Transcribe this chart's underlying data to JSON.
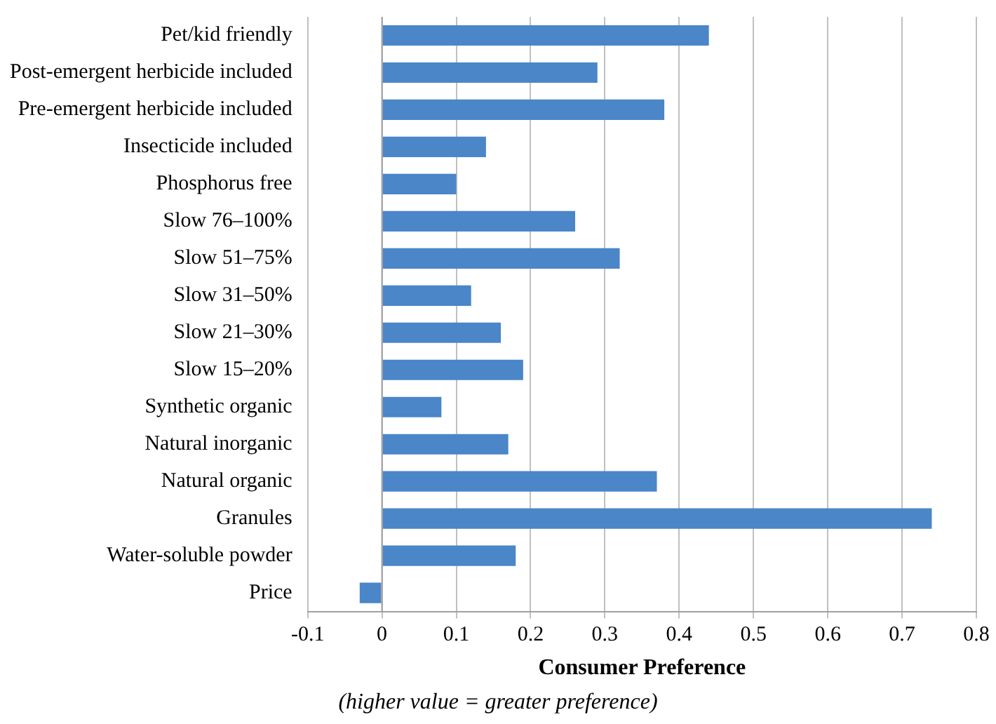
{
  "chart_data": {
    "type": "bar",
    "orientation": "horizontal",
    "xlabel": "Consumer Preference",
    "annotations": [
      "(higher value = greater preference)"
    ],
    "categories": [
      "Pet/kid friendly",
      "Post-emergent herbicide included",
      "Pre-emergent herbicide included",
      "Insecticide included",
      "Phosphorus free",
      "Slow 76–100%",
      "Slow 51–75%",
      "Slow 31–50%",
      "Slow 21–30%",
      "Slow 15–20%",
      "Synthetic organic",
      "Natural inorganic",
      "Natural organic",
      "Granules",
      "Water-soluble powder",
      "Price"
    ],
    "values": [
      0.44,
      0.29,
      0.38,
      0.14,
      0.1,
      0.26,
      0.32,
      0.12,
      0.16,
      0.19,
      0.08,
      0.17,
      0.37,
      0.74,
      0.18,
      -0.03
    ],
    "color": "#4a86c8",
    "xlim": [
      -0.1,
      0.8
    ],
    "xticks": [
      -0.1,
      0,
      0.1,
      0.2,
      0.3,
      0.4,
      0.5,
      0.6,
      0.7,
      0.8
    ],
    "grid": "x",
    "legend": false
  }
}
